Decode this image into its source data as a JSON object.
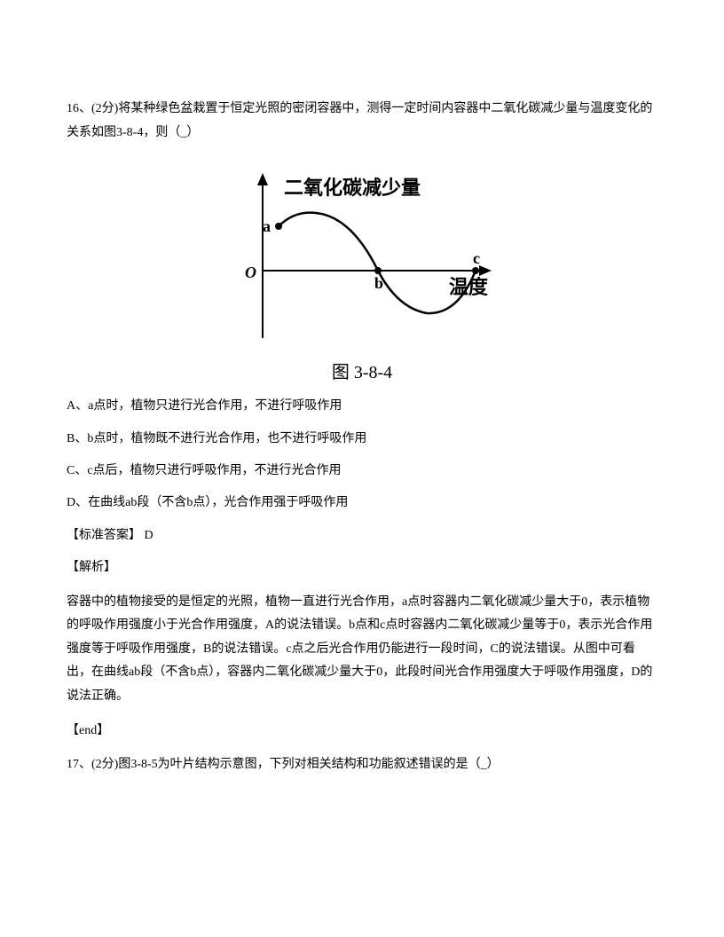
{
  "question16": {
    "stem": "16、(2分)将某种绿色盆栽置于恒定光照的密闭容器中，测得一定时间内容器中二氧化碳减少量与温度变化的关系如图3-8-4，则（_）",
    "options": {
      "A": "A、a点时，植物只进行光合作用，不进行呼吸作用",
      "B": "B、b点时，植物既不进行光合作用，也不进行呼吸作用",
      "C": "C、c点后，植物只进行呼吸作用，不进行光合作用",
      "D": "D、在曲线ab段（不含b点），光合作用强于呼吸作用"
    },
    "answer_label": "【标准答案】 D",
    "analysis_label": "【解析】",
    "analysis_text": "容器中的植物接受的是恒定的光照，植物一直进行光合作用，a点时容器内二氧化碳减少量大于0，表示植物的呼吸作用强度小于光合作用强度，A的说法错误。b点和c点时容器内二氧化碳减少量等于0，表示光合作用强度等于呼吸作用强度，B的说法错误。c点之后光合作用仍能进行一段时间，C的说法错误。从图中可看出，在曲线ab段（不含b点），容器内二氧化碳减少量大于0，此段时间光合作用强度大于呼吸作用强度，D的说法正确。",
    "end_label": "【end】"
  },
  "chart": {
    "type": "line",
    "y_axis_title": "二氧化碳减少量",
    "x_axis_title": "温度",
    "origin_label": "O",
    "point_a_label": "a",
    "point_b_label": "b",
    "point_c_label": "c",
    "caption": "图 3-8-4",
    "colors": {
      "stroke": "#000000",
      "background": "#ffffff",
      "fill_dot": "#000000"
    },
    "line_width": 2.5,
    "axis_width": 2,
    "y_title_fontsize": 22,
    "x_title_fontsize": 22,
    "caption_fontsize": 20,
    "label_fontsize": 18
  },
  "question17": {
    "stem": "17、(2分)图3-8-5为叶片结构示意图，下列对相关结构和功能叙述错误的是（_）"
  }
}
